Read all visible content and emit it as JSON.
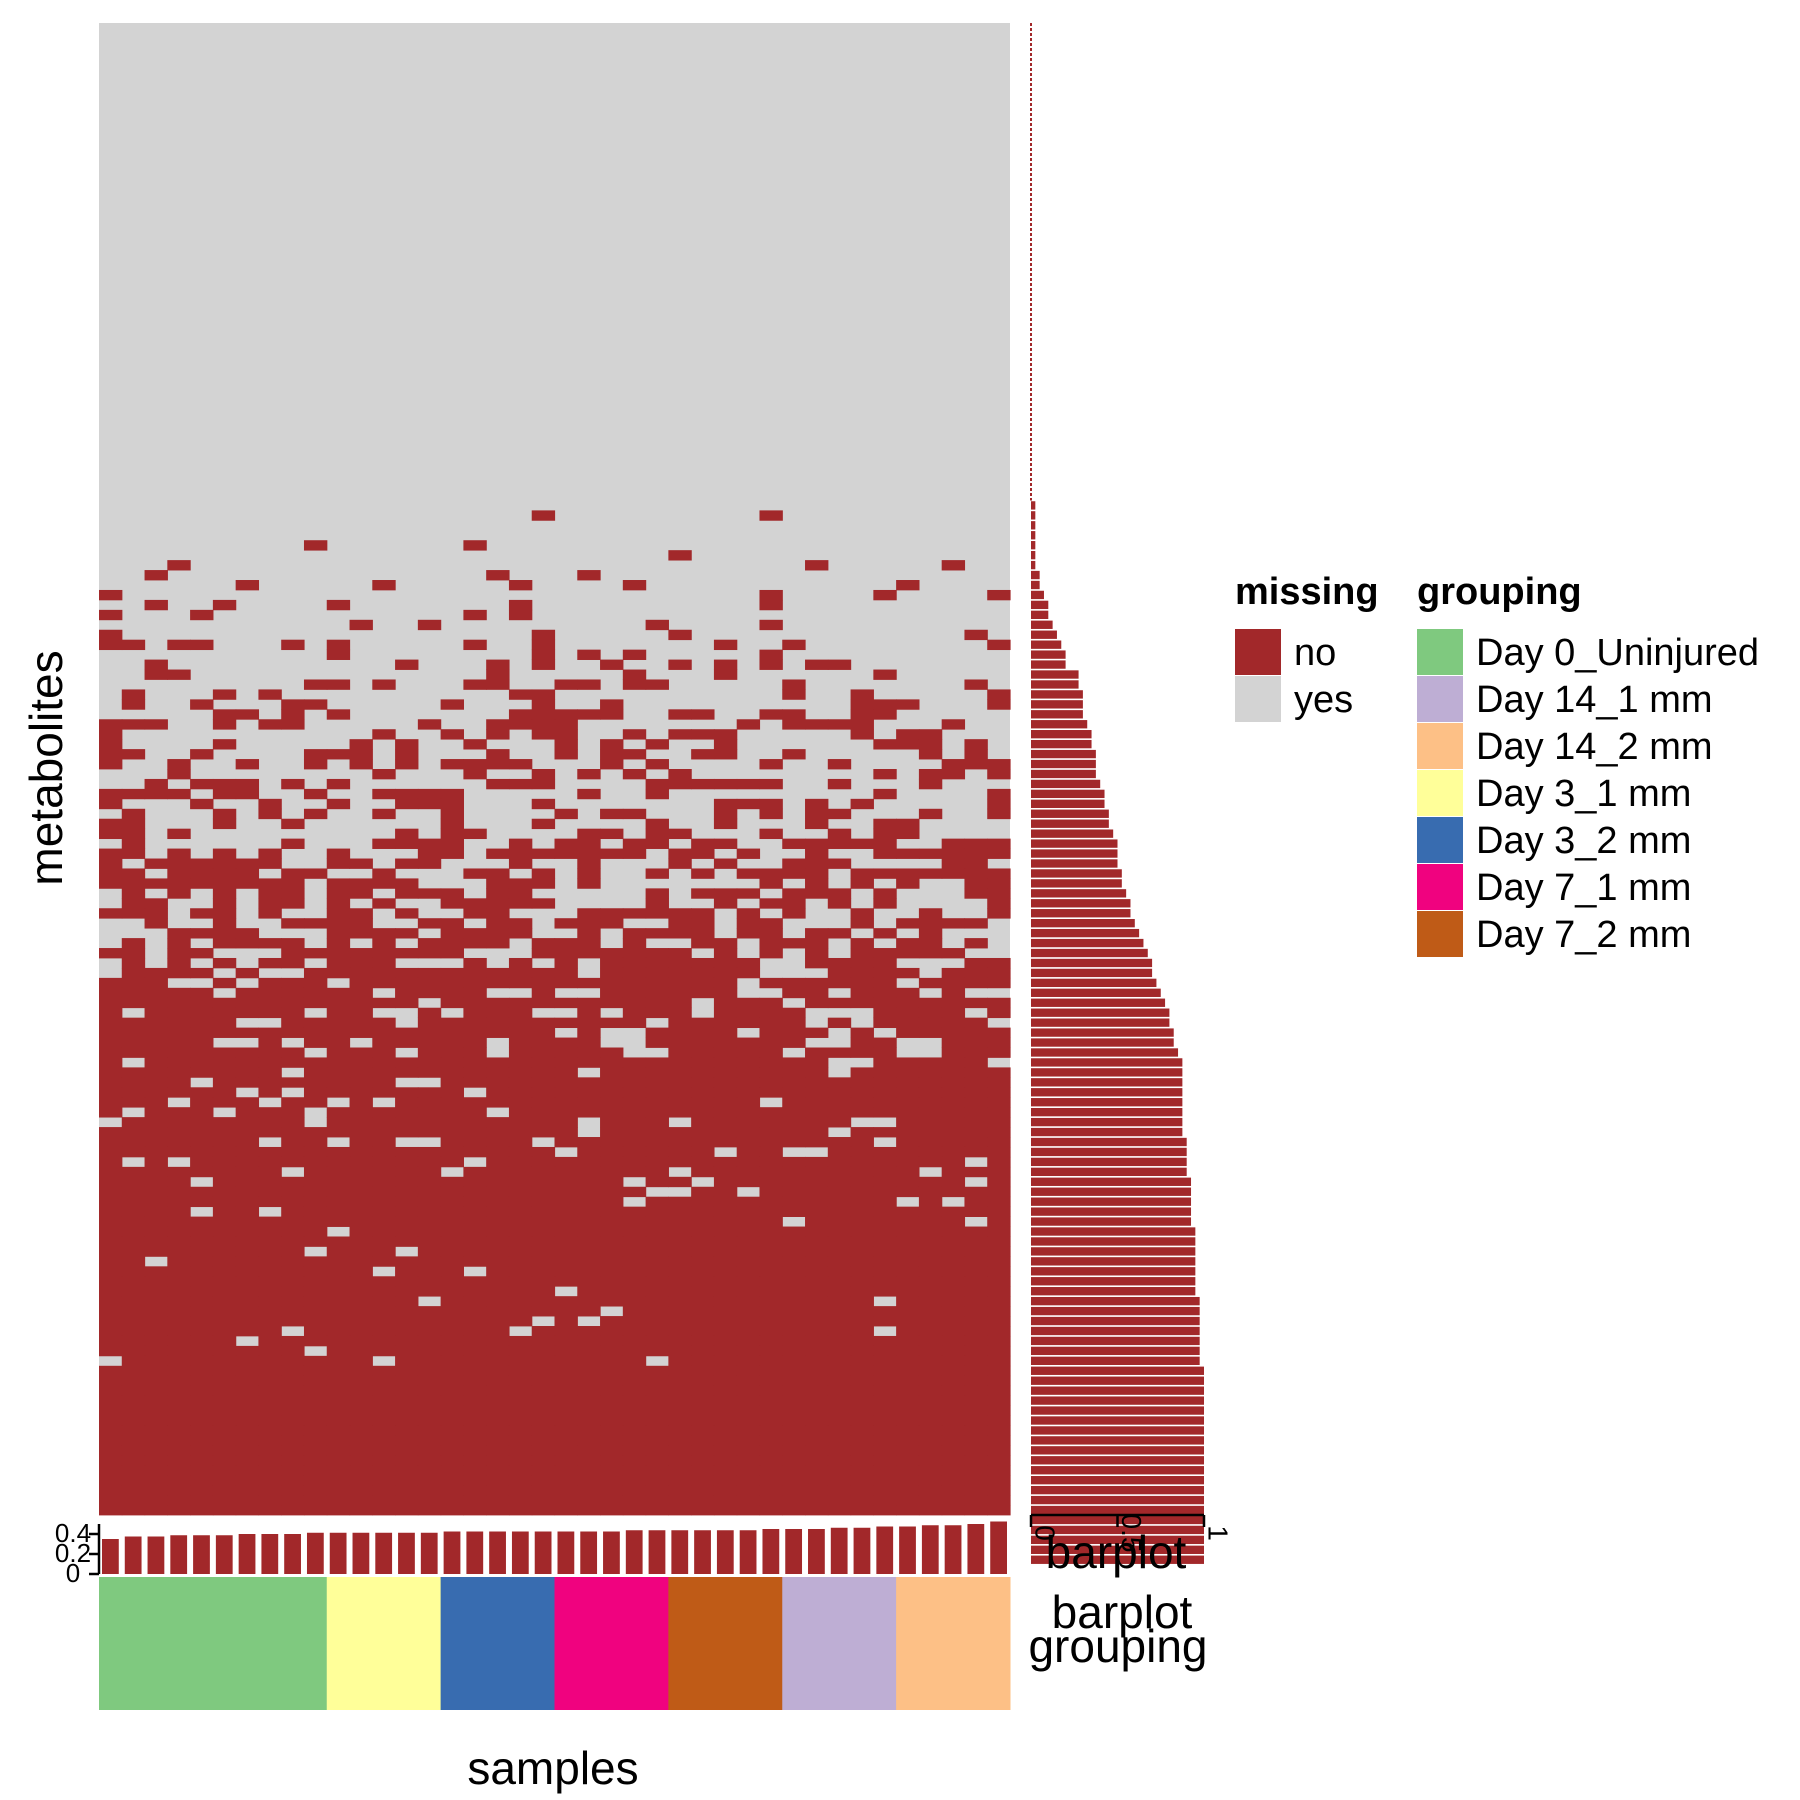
{
  "chart_data": [
    {
      "type": "heatmap",
      "xlabel": "samples",
      "ylabel": "metabolites",
      "n_samples": 40,
      "n_metabolites": 150,
      "grid": false,
      "sorted_by": "row missingness",
      "legend": {
        "title": "missing",
        "position": "right",
        "entries": [
          {
            "label": "no",
            "color": "#A2282A"
          },
          {
            "label": "yes",
            "color": "#D3D3D3"
          }
        ]
      }
    },
    {
      "type": "bar",
      "orientation": "horizontal",
      "axis_label": "barplot",
      "description_values": "fraction of samples with observed value per metabolite",
      "ticks": [
        "0",
        "0.5",
        "1"
      ],
      "xlim": [
        0,
        1
      ],
      "values": [
        0,
        0,
        0,
        0,
        0,
        0,
        0,
        0,
        0,
        0,
        0,
        0,
        0,
        0,
        0,
        0,
        0,
        0,
        0,
        0,
        0,
        0,
        0,
        0,
        0,
        0,
        0,
        0,
        0,
        0,
        0,
        0,
        0,
        0,
        0,
        0,
        0,
        0,
        0,
        0,
        0,
        0,
        0,
        0,
        0,
        0,
        0,
        0,
        0.025,
        0.025,
        0.025,
        0.025,
        0.025,
        0.025,
        0.025,
        0.05,
        0.05,
        0.075,
        0.1,
        0.1,
        0.125,
        0.15,
        0.175,
        0.2,
        0.2,
        0.275,
        0.275,
        0.3,
        0.3,
        0.3,
        0.325,
        0.35,
        0.35,
        0.375,
        0.375,
        0.375,
        0.4,
        0.425,
        0.425,
        0.45,
        0.45,
        0.475,
        0.5,
        0.5,
        0.5,
        0.525,
        0.525,
        0.55,
        0.575,
        0.575,
        0.6,
        0.625,
        0.65,
        0.675,
        0.7,
        0.7,
        0.725,
        0.75,
        0.775,
        0.8,
        0.8,
        0.825,
        0.825,
        0.85,
        0.875,
        0.875,
        0.875,
        0.875,
        0.875,
        0.875,
        0.875,
        0.875,
        0.9,
        0.9,
        0.9,
        0.9,
        0.925,
        0.925,
        0.925,
        0.925,
        0.925,
        0.95,
        0.95,
        0.95,
        0.95,
        0.95,
        0.95,
        0.95,
        0.975,
        0.975,
        0.975,
        0.975,
        0.975,
        0.975,
        0.975,
        1,
        1,
        1,
        1,
        1,
        1,
        1,
        1,
        1,
        1,
        1,
        1,
        1,
        1,
        1,
        1,
        1,
        1,
        1,
        1
      ]
    },
    {
      "type": "bar",
      "orientation": "vertical",
      "description_values": "fraction missing per sample",
      "ticks": [
        "0",
        "0.2",
        "0.4"
      ],
      "ylim": [
        0,
        0.4
      ],
      "values": [
        0.28,
        0.3,
        0.3,
        0.31,
        0.31,
        0.31,
        0.32,
        0.32,
        0.32,
        0.33,
        0.33,
        0.33,
        0.33,
        0.33,
        0.33,
        0.34,
        0.34,
        0.34,
        0.34,
        0.34,
        0.34,
        0.34,
        0.34,
        0.35,
        0.35,
        0.35,
        0.35,
        0.35,
        0.35,
        0.36,
        0.36,
        0.36,
        0.37,
        0.37,
        0.38,
        0.38,
        0.39,
        0.39,
        0.4,
        0.42
      ]
    }
  ],
  "grouping": {
    "annotation_label": "grouping",
    "legend_title": "grouping",
    "legend_entries": [
      {
        "label": "Day 0_Uninjured",
        "color": "#7FC97F"
      },
      {
        "label": "Day 14_1 mm",
        "color": "#BEAED4"
      },
      {
        "label": "Day 14_2 mm",
        "color": "#FDC086"
      },
      {
        "label": "Day 3_1 mm",
        "color": "#FFFF99"
      },
      {
        "label": "Day 3_2 mm",
        "color": "#386CB0"
      },
      {
        "label": "Day 7_1 mm",
        "color": "#F0027F"
      },
      {
        "label": "Day 7_2 mm",
        "color": "#BF5B17"
      }
    ],
    "sample_groups": [
      {
        "group": "Day 0_Uninjured",
        "count": 10
      },
      {
        "group": "Day 3_1 mm",
        "count": 5
      },
      {
        "group": "Day 3_2 mm",
        "count": 5
      },
      {
        "group": "Day 7_1 mm",
        "count": 5
      },
      {
        "group": "Day 7_2 mm",
        "count": 5
      },
      {
        "group": "Day 14_1 mm",
        "count": 5
      },
      {
        "group": "Day 14_2 mm",
        "count": 5
      }
    ]
  },
  "labels": {
    "barplot_row_label": "barplot",
    "barplot_annot_label": "barplot",
    "grouping_annot_label": "grouping"
  }
}
